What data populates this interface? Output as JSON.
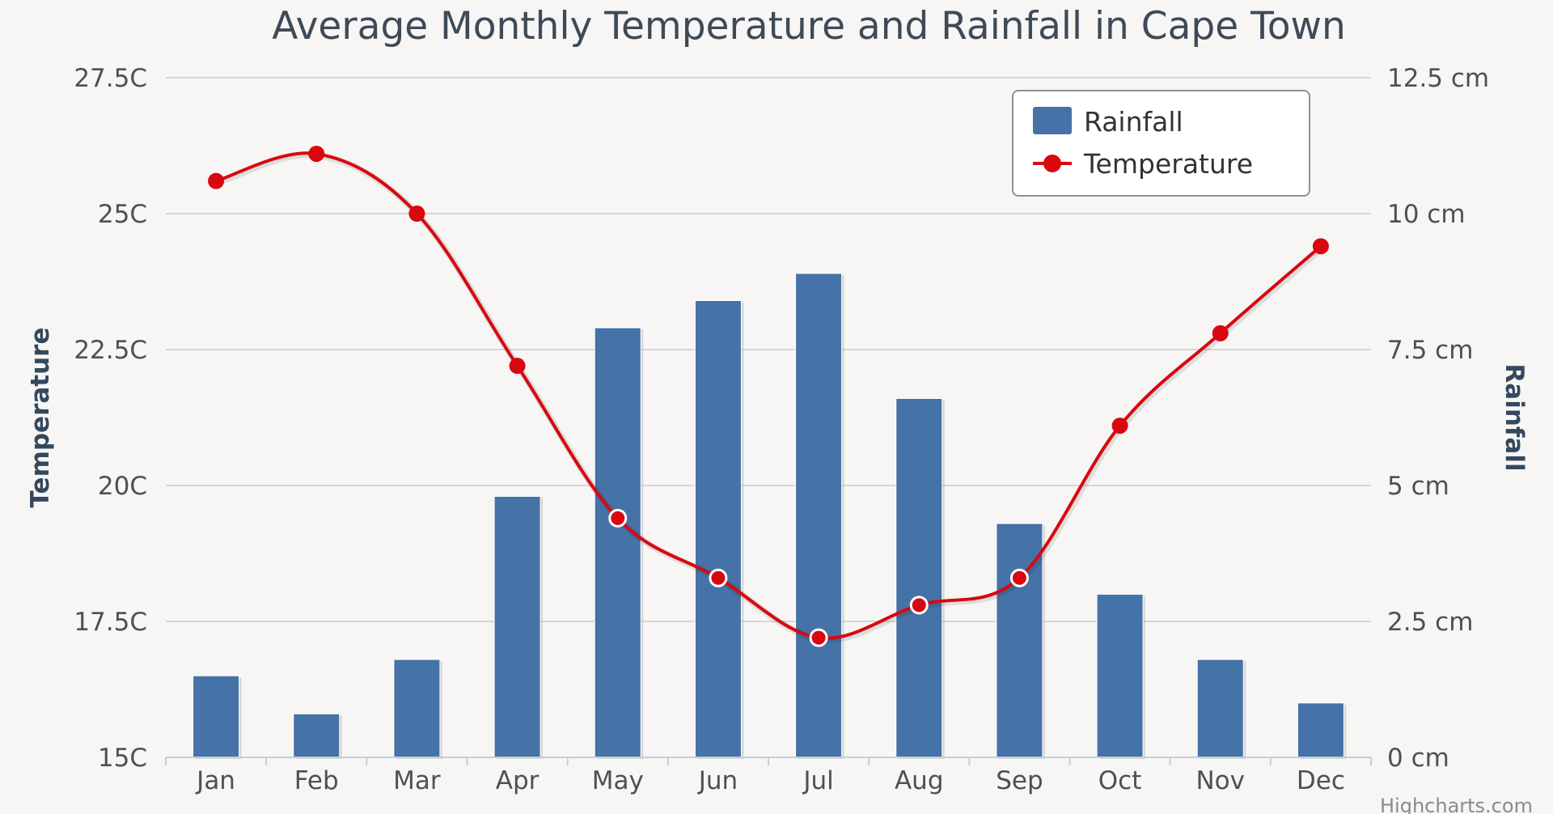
{
  "chart_data": {
    "type": "bar+line",
    "title": "Average Monthly Temperature and Rainfall in Cape Town",
    "categories": [
      "Jan",
      "Feb",
      "Mar",
      "Apr",
      "May",
      "Jun",
      "Jul",
      "Aug",
      "Sep",
      "Oct",
      "Nov",
      "Dec"
    ],
    "series": [
      {
        "name": "Rainfall",
        "type": "bar",
        "axis": "right",
        "unit": "cm",
        "color": "#4572a7",
        "values": [
          1.5,
          0.8,
          1.8,
          4.8,
          7.9,
          8.4,
          8.9,
          6.6,
          4.3,
          3.0,
          1.8,
          1.0
        ]
      },
      {
        "name": "Temperature",
        "type": "line",
        "axis": "left",
        "unit": "C",
        "color": "#d9080f",
        "values": [
          25.6,
          26.1,
          25.0,
          22.2,
          19.4,
          18.3,
          17.2,
          17.8,
          18.3,
          21.1,
          22.8,
          24.4
        ]
      }
    ],
    "y_left": {
      "title": "Temperature",
      "range": [
        15,
        27.5
      ],
      "ticks": [
        "15C",
        "17.5C",
        "20C",
        "22.5C",
        "25C",
        "27.5C"
      ]
    },
    "y_right": {
      "title": "Rainfall",
      "range": [
        0,
        12.5
      ],
      "ticks": [
        "0 cm",
        "2.5 cm",
        "5 cm",
        "7.5 cm",
        "10 cm",
        "12.5 cm"
      ]
    },
    "legend": {
      "position": "top-right",
      "items": [
        "Rainfall",
        "Temperature"
      ]
    },
    "grid": true,
    "credit": "Highcharts.com"
  }
}
